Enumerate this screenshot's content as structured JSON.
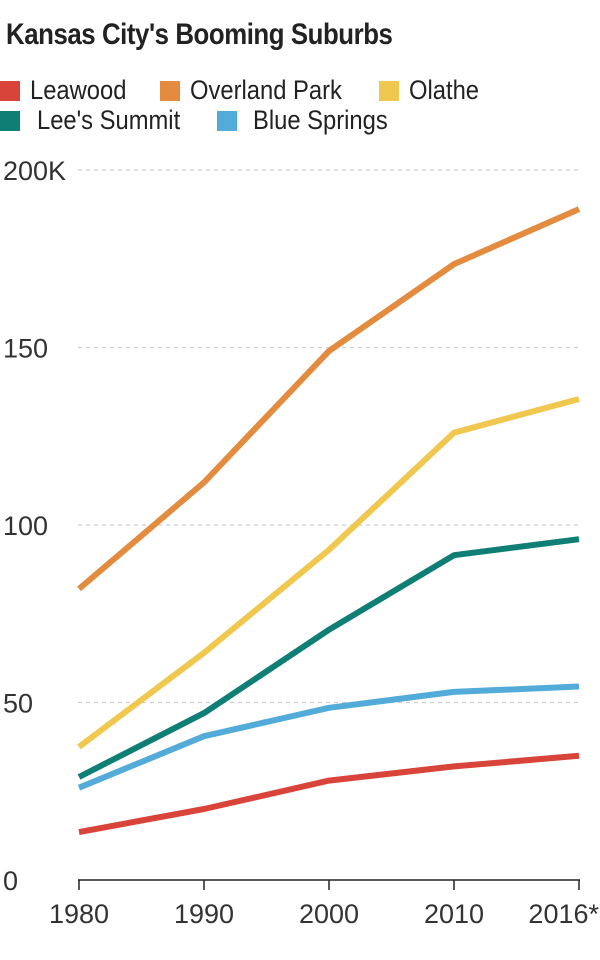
{
  "chart_data": {
    "type": "line",
    "title": "Kansas City's Booming Suburbs",
    "xlabel": "",
    "ylabel": "",
    "categories": [
      "1980",
      "1990",
      "2000",
      "2010",
      "2016*"
    ],
    "y_ticks": [
      {
        "value": 0,
        "label": "0"
      },
      {
        "value": 50,
        "label": "50"
      },
      {
        "value": 100,
        "label": "100"
      },
      {
        "value": 150,
        "label": "150"
      },
      {
        "value": 200,
        "label": "200K"
      }
    ],
    "ylim": [
      0,
      200
    ],
    "grid": true,
    "legend_position": "top",
    "series": [
      {
        "name": "Leawood",
        "color": "#d9443a",
        "values": [
          13.5,
          20,
          28,
          32,
          35
        ]
      },
      {
        "name": "Overland Park",
        "color": "#e38c3f",
        "values": [
          82,
          112,
          149,
          173.5,
          189
        ]
      },
      {
        "name": "Olathe",
        "color": "#f0c84f",
        "values": [
          37.5,
          64,
          93,
          126,
          135.5
        ]
      },
      {
        "name": "Lee's Summit",
        "color": "#0f7f76",
        "values": [
          29,
          47,
          70.5,
          91.5,
          96
        ]
      },
      {
        "name": "Blue Springs",
        "color": "#52abd9",
        "values": [
          26,
          40.5,
          48.5,
          53,
          54.5
        ]
      }
    ]
  }
}
